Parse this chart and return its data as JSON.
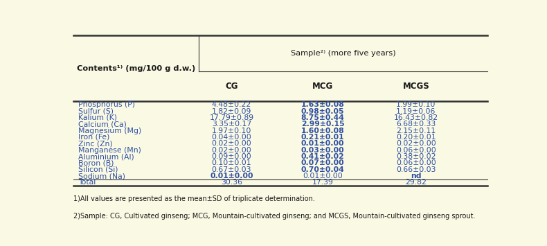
{
  "background_color": "#faf9e4",
  "border_color": "#333333",
  "text_color": "#2e4fa3",
  "header_text_color": "#1a1a1a",
  "footnote_color": "#1a1a1a",
  "sub_headers": [
    "CG",
    "MCG",
    "MCGS"
  ],
  "rows": [
    {
      "label": "Phosphorus (P)",
      "cg": "4.48±0.22",
      "mcg": "1.63±0.08",
      "mcgs": "1.99±0.10",
      "cg_bold": false,
      "mcg_bold": true,
      "mcgs_bold": false
    },
    {
      "label": "Sulfur (S)",
      "cg": "1.82±0.09",
      "mcg": "0.98±0.05",
      "mcgs": "1.19±0.06",
      "cg_bold": false,
      "mcg_bold": true,
      "mcgs_bold": false
    },
    {
      "label": "Kalium (K)",
      "cg": "17.79±0.89",
      "mcg": "8.75±0.44",
      "mcgs": "16.43±0.82",
      "cg_bold": false,
      "mcg_bold": true,
      "mcgs_bold": false
    },
    {
      "label": "Calcium (Ca)",
      "cg": "3.35±0.17",
      "mcg": "2.99±0.15",
      "mcgs": "6.68±0.33",
      "cg_bold": false,
      "mcg_bold": true,
      "mcgs_bold": false
    },
    {
      "label": "Magnesium (Mg)",
      "cg": "1.97±0.10",
      "mcg": "1.60±0.08",
      "mcgs": "2.15±0.11",
      "cg_bold": false,
      "mcg_bold": true,
      "mcgs_bold": false
    },
    {
      "label": "Iron (Fe)",
      "cg": "0.04±0.00",
      "mcg": "0.21±0.01",
      "mcgs": "0.20±0.01",
      "cg_bold": false,
      "mcg_bold": true,
      "mcgs_bold": false
    },
    {
      "label": "Zinc (Zn)",
      "cg": "0.02±0.00",
      "mcg": "0.01±0.00",
      "mcgs": "0.02±0.00",
      "cg_bold": false,
      "mcg_bold": true,
      "mcgs_bold": false
    },
    {
      "label": "Manganese (Mn)",
      "cg": "0.02±0.00",
      "mcg": "0.03±0.00",
      "mcgs": "0.06±0.00",
      "cg_bold": false,
      "mcg_bold": true,
      "mcgs_bold": false
    },
    {
      "label": "Aluminium (Al)",
      "cg": "0.09±0.00",
      "mcg": "0.41±0.02",
      "mcgs": "0.38±0.02",
      "cg_bold": false,
      "mcg_bold": true,
      "mcgs_bold": false
    },
    {
      "label": "Boron (B)",
      "cg": "0.10±0.01",
      "mcg": "0.07±0.00",
      "mcgs": "0.06±0.00",
      "cg_bold": false,
      "mcg_bold": true,
      "mcgs_bold": false
    },
    {
      "label": "Silicon (Si)",
      "cg": "0.67±0.03",
      "mcg": "0.70±0.04",
      "mcgs": "0.66±0.03",
      "cg_bold": false,
      "mcg_bold": true,
      "mcgs_bold": false
    },
    {
      "label": "Sodium (Na)",
      "cg": "0.01±0.00",
      "mcg": "0.01±0.00",
      "mcgs": "nd",
      "cg_bold": true,
      "mcg_bold": false,
      "mcgs_bold": true
    },
    {
      "label": "Total",
      "cg": "30.36",
      "mcg": "17.39",
      "mcgs": "29.82",
      "cg_bold": false,
      "mcg_bold": false,
      "mcgs_bold": false
    }
  ],
  "footnote1": "1)All values are presented as the mean±SD of triplicate determination.",
  "footnote2": "2)Sample: CG, Cultivated ginseng; MCG, Mountain-cultivated ginseng; and MCGS, Mountain-cultivated ginseng sprout.",
  "col_header": "Contents1) (mg/100 g d.w.)",
  "sample_header": "Sample2) (more five years)"
}
